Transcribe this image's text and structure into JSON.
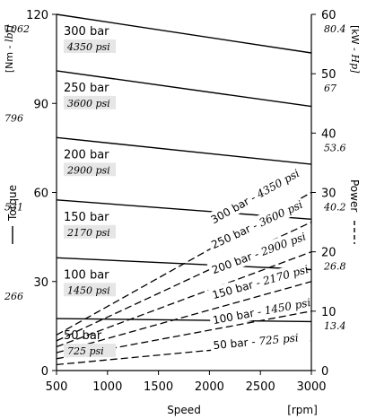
{
  "chart_data": {
    "type": "line",
    "xlabel": "Speed",
    "xunit": "[rpm]",
    "x_ticks": [
      500,
      1000,
      1500,
      2000,
      2500,
      3000
    ],
    "xlim": [
      500,
      3000
    ],
    "left_axis": {
      "label": "Torque",
      "unit": "[Nm - lbf]",
      "unit_main": "[Nm - ",
      "unit_alt": "lbf]",
      "ylim": [
        0,
        120
      ],
      "ticks": [
        0,
        30,
        60,
        90,
        120
      ],
      "alt_ticks": [
        {
          "at": 30,
          "label": "266"
        },
        {
          "at": 60,
          "label": "531"
        },
        {
          "at": 90,
          "label": "796"
        },
        {
          "at": 120,
          "label": "1062"
        }
      ]
    },
    "right_axis": {
      "label": "Power",
      "unit": "[kW - Hp]",
      "unit_main": "[kW - ",
      "unit_alt": "Hp]",
      "ylim": [
        0,
        60
      ],
      "ticks": [
        0,
        10,
        20,
        30,
        40,
        50,
        60
      ],
      "alt_ticks": [
        {
          "at": 10,
          "label": "13.4"
        },
        {
          "at": 20,
          "label": "26.8"
        },
        {
          "at": 30,
          "label": "40.2"
        },
        {
          "at": 40,
          "label": "53.6"
        },
        {
          "at": 50,
          "label": "67"
        },
        {
          "at": 60,
          "label": "80.4"
        }
      ]
    },
    "torque_series": [
      {
        "name": "300 bar",
        "alt": "4350 psi",
        "x": [
          500,
          3000
        ],
        "y": [
          120,
          107
        ]
      },
      {
        "name": "250 bar",
        "alt": "3600 psi",
        "x": [
          500,
          3000
        ],
        "y": [
          101,
          89
        ]
      },
      {
        "name": "200 bar",
        "alt": "2900 psi",
        "x": [
          500,
          3000
        ],
        "y": [
          78.5,
          69.5
        ]
      },
      {
        "name": "150 bar",
        "alt": "2170 psi",
        "x": [
          500,
          3000
        ],
        "y": [
          57.5,
          51
        ]
      },
      {
        "name": "100 bar",
        "alt": "1450 psi",
        "x": [
          500,
          3000
        ],
        "y": [
          38,
          34
        ]
      },
      {
        "name": "50 bar",
        "alt": "725 psi",
        "x": [
          500,
          3000
        ],
        "y": [
          17.5,
          16.5
        ]
      }
    ],
    "power_series": [
      {
        "name": "300 bar - 4350 psi",
        "x": [
          500,
          3000
        ],
        "y": [
          6,
          30
        ]
      },
      {
        "name": "250 bar - 3600 psi",
        "x": [
          500,
          3000
        ],
        "y": [
          5,
          25
        ]
      },
      {
        "name": "200 bar - 2900 psi",
        "x": [
          500,
          3000
        ],
        "y": [
          4,
          20
        ]
      },
      {
        "name": "150 bar - 2170 psi",
        "x": [
          500,
          3000
        ],
        "y": [
          3,
          15
        ]
      },
      {
        "name": "100 bar - 1450 psi",
        "x": [
          500,
          3000
        ],
        "y": [
          2,
          10
        ]
      },
      {
        "name": "50 bar - 725 psi",
        "x": [
          500,
          3000
        ],
        "y": [
          1,
          5
        ]
      }
    ],
    "legend": {
      "solid": "Torque",
      "dashed": "Power"
    }
  }
}
